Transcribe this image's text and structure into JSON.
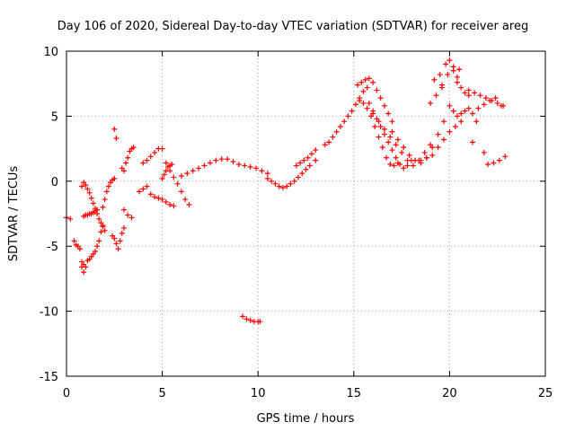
{
  "chart_data": {
    "type": "scatter",
    "title": "Day 106 of 2020, Sidereal Day-to-day VTEC variation (SDTVAR) for receiver areg",
    "xlabel": "GPS time / hours",
    "ylabel": "SDTVAR / TECUs",
    "xlim": [
      0,
      25
    ],
    "ylim": [
      -15,
      10
    ],
    "xticks": [
      0,
      5,
      10,
      15,
      20,
      25
    ],
    "yticks": [
      -15,
      -10,
      -5,
      0,
      5,
      10
    ],
    "xtick_labels": [
      "0",
      "5",
      "10",
      "15",
      "20",
      "25"
    ],
    "ytick_labels": [
      "-15",
      "-10",
      "-5",
      "0",
      "5",
      "10"
    ],
    "grid": true,
    "marker": "+",
    "color": "#ff0000",
    "series": [
      {
        "name": "SDTVAR",
        "x": [
          0.0,
          0.2,
          0.4,
          0.5,
          0.6,
          0.7,
          0.8,
          0.9,
          0.8,
          0.9,
          1.0,
          1.1,
          1.2,
          1.3,
          1.4,
          1.5,
          1.6,
          1.7,
          1.8,
          1.9,
          0.8,
          0.9,
          1.0,
          1.1,
          1.2,
          1.3,
          1.4,
          1.5,
          1.6,
          1.7,
          1.8,
          1.9,
          2.0,
          0.9,
          1.0,
          1.1,
          1.2,
          1.3,
          1.4,
          1.5,
          1.6,
          1.9,
          2.0,
          2.1,
          2.2,
          2.3,
          2.4,
          2.5,
          2.5,
          2.6,
          2.4,
          2.5,
          2.6,
          2.7,
          2.8,
          2.9,
          3.0,
          2.9,
          3.0,
          3.1,
          3.2,
          3.3,
          3.4,
          3.5,
          3.0,
          3.2,
          3.4,
          3.8,
          4.0,
          4.2,
          4.4,
          4.6,
          4.8,
          5.0,
          5.2,
          5.4,
          5.6,
          4.0,
          4.2,
          4.4,
          4.6,
          4.8,
          5.0,
          5.2,
          5.4,
          5.6,
          5.8,
          6.0,
          6.2,
          6.4,
          5.0,
          5.1,
          5.2,
          5.3,
          5.4,
          5.5,
          6.0,
          6.3,
          6.6,
          6.9,
          7.2,
          7.5,
          7.8,
          8.1,
          8.4,
          8.7,
          9.0,
          9.3,
          9.6,
          9.9,
          10.2,
          10.5,
          10.5,
          10.7,
          10.9,
          11.1,
          11.3,
          11.5,
          11.7,
          11.9,
          12.1,
          12.3,
          12.5,
          12.7,
          13.0,
          12.0,
          12.2,
          12.4,
          12.6,
          12.8,
          13.0,
          13.5,
          13.7,
          13.9,
          14.1,
          14.3,
          14.5,
          14.7,
          14.9,
          15.1,
          15.3,
          15.5,
          15.7,
          15.2,
          15.4,
          15.6,
          15.8,
          16.0,
          16.2,
          16.4,
          16.6,
          16.8,
          17.0,
          15.3,
          15.5,
          15.7,
          15.9,
          16.1,
          16.3,
          16.5,
          16.7,
          16.9,
          17.1,
          17.3,
          15.8,
          16.0,
          16.2,
          16.4,
          16.6,
          16.8,
          17.0,
          17.2,
          17.4,
          17.6,
          17.8,
          18.0,
          16.0,
          16.3,
          16.6,
          16.9,
          17.2,
          17.5,
          17.8,
          18.1,
          18.4,
          18.7,
          19.0,
          17.0,
          17.3,
          17.6,
          17.9,
          18.2,
          18.5,
          18.8,
          19.1,
          19.4,
          19.7,
          18.5,
          18.8,
          19.1,
          19.4,
          19.7,
          20.0,
          20.3,
          20.6,
          19.0,
          19.3,
          19.6,
          19.9,
          20.2,
          20.5,
          19.5,
          19.8,
          20.0,
          20.2,
          20.4,
          20.6,
          20.8,
          21.0,
          20.0,
          20.2,
          20.4,
          20.6,
          20.8,
          21.0,
          21.2,
          21.4,
          21.0,
          21.3,
          21.6,
          21.9,
          22.2,
          22.5,
          22.8,
          21.5,
          21.8,
          22.1,
          22.4,
          22.7,
          22.0,
          22.3,
          22.6,
          22.9,
          9.2,
          9.4,
          9.6,
          9.8,
          10.0,
          10.1,
          19.2,
          19.6,
          20.4,
          21.2,
          21.8
        ],
        "y": [
          -2.8,
          -2.9,
          -4.6,
          -4.9,
          -5.0,
          -5.2,
          -6.6,
          -7.0,
          -6.2,
          -6.4,
          -6.6,
          -6.1,
          -6.0,
          -5.8,
          -5.6,
          -5.4,
          -5.0,
          -4.6,
          -3.9,
          -3.4,
          -0.4,
          -0.1,
          -0.3,
          -0.6,
          -0.9,
          -1.3,
          -1.7,
          -2.1,
          -2.5,
          -2.9,
          -3.2,
          -3.5,
          -3.8,
          -2.7,
          -2.6,
          -2.6,
          -2.5,
          -2.5,
          -2.4,
          -2.3,
          -2.2,
          -2.0,
          -1.4,
          -0.8,
          -0.4,
          -0.1,
          0.1,
          0.2,
          4.0,
          3.3,
          -4.2,
          -4.4,
          -4.8,
          -5.2,
          -4.6,
          -4.0,
          -3.6,
          1.0,
          0.8,
          1.4,
          1.8,
          2.3,
          2.5,
          2.6,
          -2.2,
          -2.6,
          -2.8,
          -0.8,
          -0.6,
          -0.4,
          -1.0,
          -1.2,
          -1.3,
          -1.4,
          -1.6,
          -1.8,
          -1.9,
          1.4,
          1.6,
          1.9,
          2.2,
          2.5,
          2.5,
          1.4,
          0.8,
          0.3,
          -0.2,
          -0.8,
          -1.4,
          -1.8,
          0.2,
          0.5,
          0.8,
          1.1,
          1.2,
          1.3,
          0.4,
          0.6,
          0.8,
          1.0,
          1.2,
          1.4,
          1.6,
          1.7,
          1.7,
          1.5,
          1.3,
          1.2,
          1.1,
          1.0,
          0.8,
          0.6,
          0.2,
          0.0,
          -0.2,
          -0.4,
          -0.5,
          -0.4,
          -0.2,
          0.0,
          0.3,
          0.6,
          0.9,
          1.2,
          1.6,
          1.2,
          1.4,
          1.6,
          1.8,
          2.1,
          2.4,
          2.8,
          3.0,
          3.4,
          3.8,
          4.2,
          4.6,
          5.0,
          5.4,
          5.9,
          6.4,
          6.9,
          7.2,
          7.4,
          7.6,
          7.8,
          7.9,
          7.6,
          7.0,
          6.4,
          5.8,
          5.2,
          4.6,
          6.2,
          6.0,
          5.6,
          5.0,
          4.2,
          3.4,
          2.6,
          1.8,
          1.3,
          1.2,
          1.4,
          6.0,
          5.4,
          4.8,
          4.2,
          3.6,
          3.0,
          2.4,
          1.8,
          1.3,
          1.0,
          1.2,
          1.6,
          5.2,
          4.6,
          4.0,
          3.4,
          2.8,
          2.2,
          1.6,
          1.2,
          1.6,
          2.2,
          2.8,
          3.8,
          3.2,
          2.6,
          2.0,
          1.6,
          1.4,
          1.8,
          2.6,
          3.6,
          4.6,
          1.6,
          1.8,
          2.0,
          2.6,
          3.2,
          3.8,
          4.2,
          4.6,
          6.0,
          6.6,
          7.4,
          8.2,
          8.8,
          8.6,
          8.2,
          9.0,
          9.3,
          8.5,
          7.6,
          7.2,
          6.8,
          6.6,
          5.8,
          5.4,
          5.0,
          5.2,
          5.4,
          5.6,
          5.2,
          4.6,
          7.0,
          6.8,
          6.6,
          6.4,
          6.2,
          6.0,
          5.8,
          5.6,
          5.9,
          6.2,
          6.4,
          5.8,
          1.3,
          1.4,
          1.6,
          1.9,
          -10.4,
          -10.6,
          -10.7,
          -10.8,
          -10.8,
          -10.8,
          7.8,
          7.2,
          8.0,
          3.0,
          2.2
        ]
      }
    ]
  }
}
